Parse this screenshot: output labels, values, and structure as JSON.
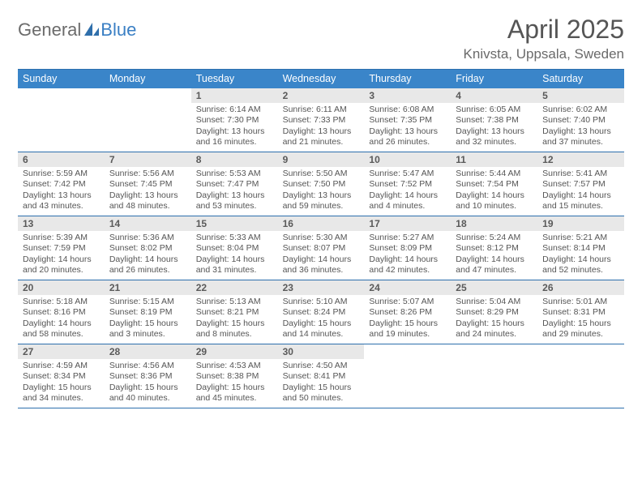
{
  "logo": {
    "general": "General",
    "blue": "Blue"
  },
  "title": {
    "month": "April 2025",
    "location": "Knivsta, Uppsala, Sweden"
  },
  "colors": {
    "header_bg": "#3a85c9",
    "header_text": "#ffffff",
    "border": "#2d6fad",
    "daynum_bg": "#e8e8e8",
    "body_text": "#555555",
    "logo_gray": "#6b6b6b",
    "logo_blue": "#3a7fc4"
  },
  "weekdays": [
    "Sunday",
    "Monday",
    "Tuesday",
    "Wednesday",
    "Thursday",
    "Friday",
    "Saturday"
  ],
  "weeks": [
    [
      {
        "n": "",
        "sr": "",
        "ss": "",
        "dl": ""
      },
      {
        "n": "",
        "sr": "",
        "ss": "",
        "dl": ""
      },
      {
        "n": "1",
        "sr": "Sunrise: 6:14 AM",
        "ss": "Sunset: 7:30 PM",
        "dl": "Daylight: 13 hours and 16 minutes."
      },
      {
        "n": "2",
        "sr": "Sunrise: 6:11 AM",
        "ss": "Sunset: 7:33 PM",
        "dl": "Daylight: 13 hours and 21 minutes."
      },
      {
        "n": "3",
        "sr": "Sunrise: 6:08 AM",
        "ss": "Sunset: 7:35 PM",
        "dl": "Daylight: 13 hours and 26 minutes."
      },
      {
        "n": "4",
        "sr": "Sunrise: 6:05 AM",
        "ss": "Sunset: 7:38 PM",
        "dl": "Daylight: 13 hours and 32 minutes."
      },
      {
        "n": "5",
        "sr": "Sunrise: 6:02 AM",
        "ss": "Sunset: 7:40 PM",
        "dl": "Daylight: 13 hours and 37 minutes."
      }
    ],
    [
      {
        "n": "6",
        "sr": "Sunrise: 5:59 AM",
        "ss": "Sunset: 7:42 PM",
        "dl": "Daylight: 13 hours and 43 minutes."
      },
      {
        "n": "7",
        "sr": "Sunrise: 5:56 AM",
        "ss": "Sunset: 7:45 PM",
        "dl": "Daylight: 13 hours and 48 minutes."
      },
      {
        "n": "8",
        "sr": "Sunrise: 5:53 AM",
        "ss": "Sunset: 7:47 PM",
        "dl": "Daylight: 13 hours and 53 minutes."
      },
      {
        "n": "9",
        "sr": "Sunrise: 5:50 AM",
        "ss": "Sunset: 7:50 PM",
        "dl": "Daylight: 13 hours and 59 minutes."
      },
      {
        "n": "10",
        "sr": "Sunrise: 5:47 AM",
        "ss": "Sunset: 7:52 PM",
        "dl": "Daylight: 14 hours and 4 minutes."
      },
      {
        "n": "11",
        "sr": "Sunrise: 5:44 AM",
        "ss": "Sunset: 7:54 PM",
        "dl": "Daylight: 14 hours and 10 minutes."
      },
      {
        "n": "12",
        "sr": "Sunrise: 5:41 AM",
        "ss": "Sunset: 7:57 PM",
        "dl": "Daylight: 14 hours and 15 minutes."
      }
    ],
    [
      {
        "n": "13",
        "sr": "Sunrise: 5:39 AM",
        "ss": "Sunset: 7:59 PM",
        "dl": "Daylight: 14 hours and 20 minutes."
      },
      {
        "n": "14",
        "sr": "Sunrise: 5:36 AM",
        "ss": "Sunset: 8:02 PM",
        "dl": "Daylight: 14 hours and 26 minutes."
      },
      {
        "n": "15",
        "sr": "Sunrise: 5:33 AM",
        "ss": "Sunset: 8:04 PM",
        "dl": "Daylight: 14 hours and 31 minutes."
      },
      {
        "n": "16",
        "sr": "Sunrise: 5:30 AM",
        "ss": "Sunset: 8:07 PM",
        "dl": "Daylight: 14 hours and 36 minutes."
      },
      {
        "n": "17",
        "sr": "Sunrise: 5:27 AM",
        "ss": "Sunset: 8:09 PM",
        "dl": "Daylight: 14 hours and 42 minutes."
      },
      {
        "n": "18",
        "sr": "Sunrise: 5:24 AM",
        "ss": "Sunset: 8:12 PM",
        "dl": "Daylight: 14 hours and 47 minutes."
      },
      {
        "n": "19",
        "sr": "Sunrise: 5:21 AM",
        "ss": "Sunset: 8:14 PM",
        "dl": "Daylight: 14 hours and 52 minutes."
      }
    ],
    [
      {
        "n": "20",
        "sr": "Sunrise: 5:18 AM",
        "ss": "Sunset: 8:16 PM",
        "dl": "Daylight: 14 hours and 58 minutes."
      },
      {
        "n": "21",
        "sr": "Sunrise: 5:15 AM",
        "ss": "Sunset: 8:19 PM",
        "dl": "Daylight: 15 hours and 3 minutes."
      },
      {
        "n": "22",
        "sr": "Sunrise: 5:13 AM",
        "ss": "Sunset: 8:21 PM",
        "dl": "Daylight: 15 hours and 8 minutes."
      },
      {
        "n": "23",
        "sr": "Sunrise: 5:10 AM",
        "ss": "Sunset: 8:24 PM",
        "dl": "Daylight: 15 hours and 14 minutes."
      },
      {
        "n": "24",
        "sr": "Sunrise: 5:07 AM",
        "ss": "Sunset: 8:26 PM",
        "dl": "Daylight: 15 hours and 19 minutes."
      },
      {
        "n": "25",
        "sr": "Sunrise: 5:04 AM",
        "ss": "Sunset: 8:29 PM",
        "dl": "Daylight: 15 hours and 24 minutes."
      },
      {
        "n": "26",
        "sr": "Sunrise: 5:01 AM",
        "ss": "Sunset: 8:31 PM",
        "dl": "Daylight: 15 hours and 29 minutes."
      }
    ],
    [
      {
        "n": "27",
        "sr": "Sunrise: 4:59 AM",
        "ss": "Sunset: 8:34 PM",
        "dl": "Daylight: 15 hours and 34 minutes."
      },
      {
        "n": "28",
        "sr": "Sunrise: 4:56 AM",
        "ss": "Sunset: 8:36 PM",
        "dl": "Daylight: 15 hours and 40 minutes."
      },
      {
        "n": "29",
        "sr": "Sunrise: 4:53 AM",
        "ss": "Sunset: 8:38 PM",
        "dl": "Daylight: 15 hours and 45 minutes."
      },
      {
        "n": "30",
        "sr": "Sunrise: 4:50 AM",
        "ss": "Sunset: 8:41 PM",
        "dl": "Daylight: 15 hours and 50 minutes."
      },
      {
        "n": "",
        "sr": "",
        "ss": "",
        "dl": ""
      },
      {
        "n": "",
        "sr": "",
        "ss": "",
        "dl": ""
      },
      {
        "n": "",
        "sr": "",
        "ss": "",
        "dl": ""
      }
    ]
  ]
}
